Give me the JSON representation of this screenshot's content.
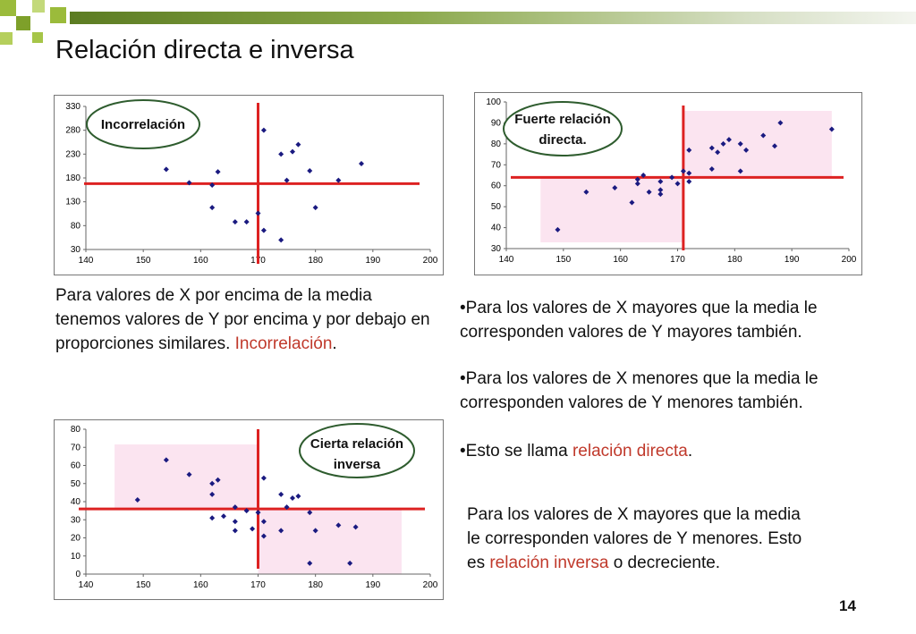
{
  "title": "Relación directa e inversa",
  "page_number": "14",
  "colors": {
    "mean_line": "#dd2222",
    "point": "#1a1a80",
    "shade": "#fbe4f0",
    "callout": "#2e5c2e",
    "highlight": "#c0392b"
  },
  "texts": {
    "left_para_1": "Para valores de X por encima de la media tenemos valores de Y por encima y por debajo en proporciones similares.",
    "left_para_hl": "Incorrelación",
    "left_para_end": ".",
    "b1": "•Para los valores de X mayores que la media le corresponden valores de Y mayores también.",
    "b2": "•Para los valores de X menores que la media le corresponden valores de Y menores también.",
    "b3_pre": "•Esto se llama ",
    "b3_hl": "relación directa",
    "b3_end": ".",
    "inv_pre": "Para los valores de X mayores que la media le corresponden valores de Y menores. Esto es ",
    "inv_hl": "relación inversa",
    "inv_end": " o decreciente."
  },
  "chart_data": [
    {
      "type": "scatter",
      "note": "Incorrelación",
      "xlim": [
        140,
        200
      ],
      "ylim": [
        30,
        330
      ],
      "xticks": [
        140,
        150,
        160,
        170,
        180,
        190,
        200
      ],
      "yticks": [
        30,
        80,
        130,
        180,
        230,
        280,
        330
      ],
      "mean_x": 170,
      "mean_y": 168,
      "shaded": false,
      "points": [
        [
          154,
          198
        ],
        [
          158,
          170
        ],
        [
          162,
          165
        ],
        [
          162,
          118
        ],
        [
          163,
          193
        ],
        [
          166,
          88
        ],
        [
          168,
          88
        ],
        [
          170,
          106
        ],
        [
          171,
          280
        ],
        [
          171,
          70
        ],
        [
          174,
          230
        ],
        [
          174,
          50
        ],
        [
          175,
          175
        ],
        [
          176,
          235
        ],
        [
          177,
          250
        ],
        [
          179,
          195
        ],
        [
          180,
          118
        ],
        [
          184,
          175
        ],
        [
          188,
          210
        ]
      ]
    },
    {
      "type": "scatter",
      "note": "Fuerte relación directa.",
      "xlim": [
        140,
        200
      ],
      "ylim": [
        30,
        100
      ],
      "xticks": [
        140,
        150,
        160,
        170,
        180,
        190,
        200
      ],
      "yticks": [
        30,
        40,
        50,
        60,
        70,
        80,
        90,
        100
      ],
      "mean_x": 171,
      "mean_y": 64,
      "shaded": true,
      "points": [
        [
          149,
          39
        ],
        [
          154,
          57
        ],
        [
          159,
          59
        ],
        [
          162,
          52
        ],
        [
          163,
          61
        ],
        [
          163,
          63
        ],
        [
          164,
          65
        ],
        [
          165,
          57
        ],
        [
          167,
          56
        ],
        [
          167,
          58
        ],
        [
          167,
          62
        ],
        [
          169,
          64
        ],
        [
          170,
          61
        ],
        [
          171,
          67
        ],
        [
          172,
          66
        ],
        [
          172,
          62
        ],
        [
          172,
          77
        ],
        [
          176,
          78
        ],
        [
          176,
          68
        ],
        [
          177,
          76
        ],
        [
          178,
          80
        ],
        [
          179,
          82
        ],
        [
          181,
          80
        ],
        [
          181,
          67
        ],
        [
          182,
          77
        ],
        [
          185,
          84
        ],
        [
          187,
          79
        ],
        [
          188,
          90
        ],
        [
          197,
          87
        ]
      ]
    },
    {
      "type": "scatter",
      "note": "Cierta relación inversa",
      "xlim": [
        140,
        200
      ],
      "ylim": [
        0,
        80
      ],
      "xticks": [
        140,
        150,
        160,
        170,
        180,
        190,
        200
      ],
      "yticks": [
        0,
        10,
        20,
        30,
        40,
        50,
        60,
        70,
        80
      ],
      "mean_x": 170,
      "mean_y": 36,
      "shaded": true,
      "points": [
        [
          149,
          41
        ],
        [
          154,
          63
        ],
        [
          158,
          55
        ],
        [
          162,
          31
        ],
        [
          162,
          44
        ],
        [
          162,
          50
        ],
        [
          163,
          52
        ],
        [
          164,
          32
        ],
        [
          166,
          37
        ],
        [
          166,
          29
        ],
        [
          166,
          24
        ],
        [
          168,
          35
        ],
        [
          169,
          25
        ],
        [
          170,
          34
        ],
        [
          171,
          53
        ],
        [
          171,
          29
        ],
        [
          171,
          21
        ],
        [
          174,
          44
        ],
        [
          174,
          24
        ],
        [
          175,
          37
        ],
        [
          176,
          42
        ],
        [
          177,
          43
        ],
        [
          179,
          34
        ],
        [
          179,
          6
        ],
        [
          180,
          24
        ],
        [
          184,
          27
        ],
        [
          186,
          6
        ],
        [
          187,
          26
        ]
      ]
    }
  ]
}
